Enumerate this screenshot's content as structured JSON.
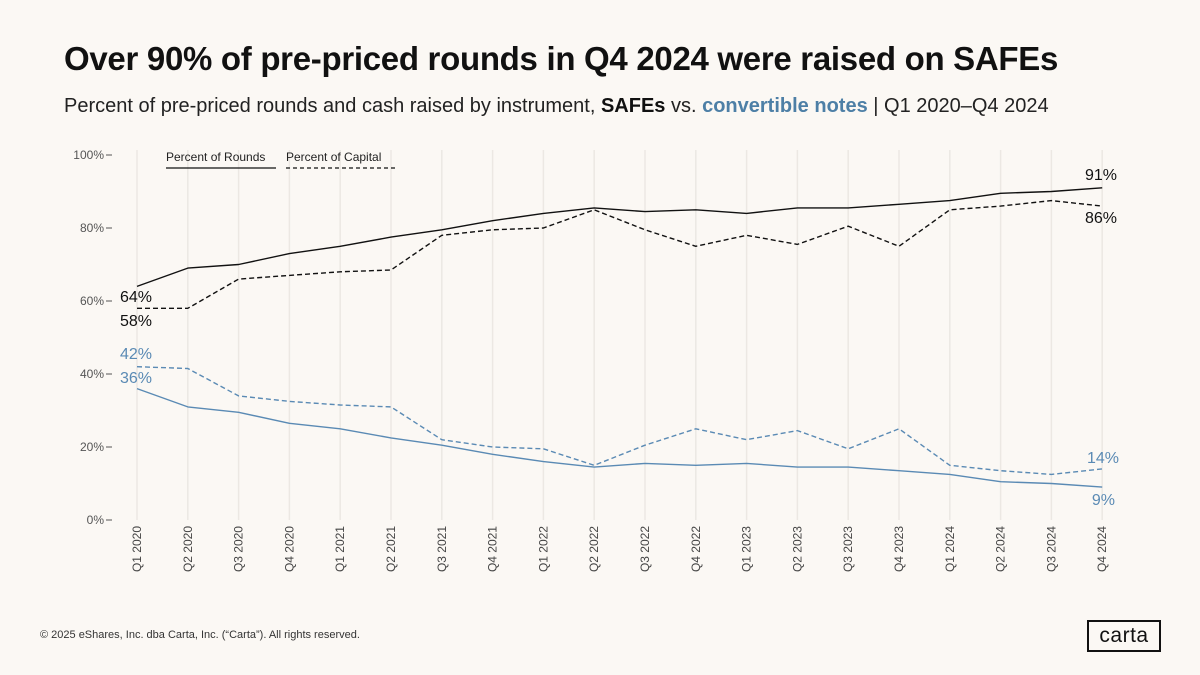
{
  "title": "Over 90% of pre-priced rounds in Q4 2024 were raised on SAFEs",
  "subtitle": {
    "prefix": "Percent of pre-priced rounds and cash raised by instrument, ",
    "safes": "SAFEs",
    "vs": " vs. ",
    "notes": "convertible notes",
    "suffix": " | Q1 2020–Q4 2024"
  },
  "footer": "© 2025 eShares, Inc. dba Carta, Inc. (“Carta”). All rights reserved.",
  "logo": "carta",
  "colors": {
    "safe": "#111111",
    "notes": "#5a8ab4",
    "grid": "#ece8e3"
  },
  "chart_data": {
    "type": "line",
    "title": "Over 90% of pre-priced rounds in Q4 2024 were raised on SAFEs",
    "xlabel": "",
    "ylabel": "",
    "ylim": [
      0,
      100
    ],
    "yticks": [
      "0%",
      "20%",
      "40%",
      "60%",
      "80%",
      "100%"
    ],
    "legend": {
      "rounds": "Percent of Rounds",
      "capital": "Percent of Capital"
    },
    "categories": [
      "Q1 2020",
      "Q2 2020",
      "Q3 2020",
      "Q4 2020",
      "Q1 2021",
      "Q2 2021",
      "Q3 2021",
      "Q4 2021",
      "Q1 2022",
      "Q2 2022",
      "Q3 2022",
      "Q4 2022",
      "Q1 2023",
      "Q2 2023",
      "Q3 2023",
      "Q4 2023",
      "Q1 2024",
      "Q2 2024",
      "Q3 2024",
      "Q4 2024"
    ],
    "series": [
      {
        "name": "SAFEs – Percent of Rounds",
        "instrument": "safe",
        "style": "solid",
        "values": [
          64,
          69,
          70,
          73,
          75,
          77.5,
          79.5,
          82,
          84,
          85.5,
          84.5,
          85,
          84,
          85.5,
          85.5,
          86.5,
          87.5,
          89.5,
          90,
          91
        ],
        "start_label": "64%",
        "end_label": "91%"
      },
      {
        "name": "SAFEs – Percent of Capital",
        "instrument": "safe",
        "style": "dashed",
        "values": [
          58,
          58,
          66,
          67,
          68,
          68.5,
          78,
          79.5,
          80,
          85,
          79.5,
          75,
          78,
          75.5,
          80.5,
          75,
          85,
          86,
          87.5,
          86
        ],
        "start_label": "58%",
        "end_label": "86%"
      },
      {
        "name": "Convertible notes – Percent of Capital",
        "instrument": "notes",
        "style": "dashed",
        "values": [
          42,
          41.5,
          34,
          32.5,
          31.5,
          31,
          22,
          20,
          19.5,
          15,
          20.5,
          25,
          22,
          24.5,
          19.5,
          25,
          15,
          13.5,
          12.5,
          14
        ],
        "start_label": "42%",
        "end_label": "14%"
      },
      {
        "name": "Convertible notes – Percent of Rounds",
        "instrument": "notes",
        "style": "solid",
        "values": [
          36,
          31,
          29.5,
          26.5,
          25,
          22.5,
          20.5,
          18,
          16,
          14.5,
          15.5,
          15,
          15.5,
          14.5,
          14.5,
          13.5,
          12.5,
          10.5,
          10,
          9
        ],
        "start_label": "36%",
        "end_label": "9%"
      }
    ]
  }
}
